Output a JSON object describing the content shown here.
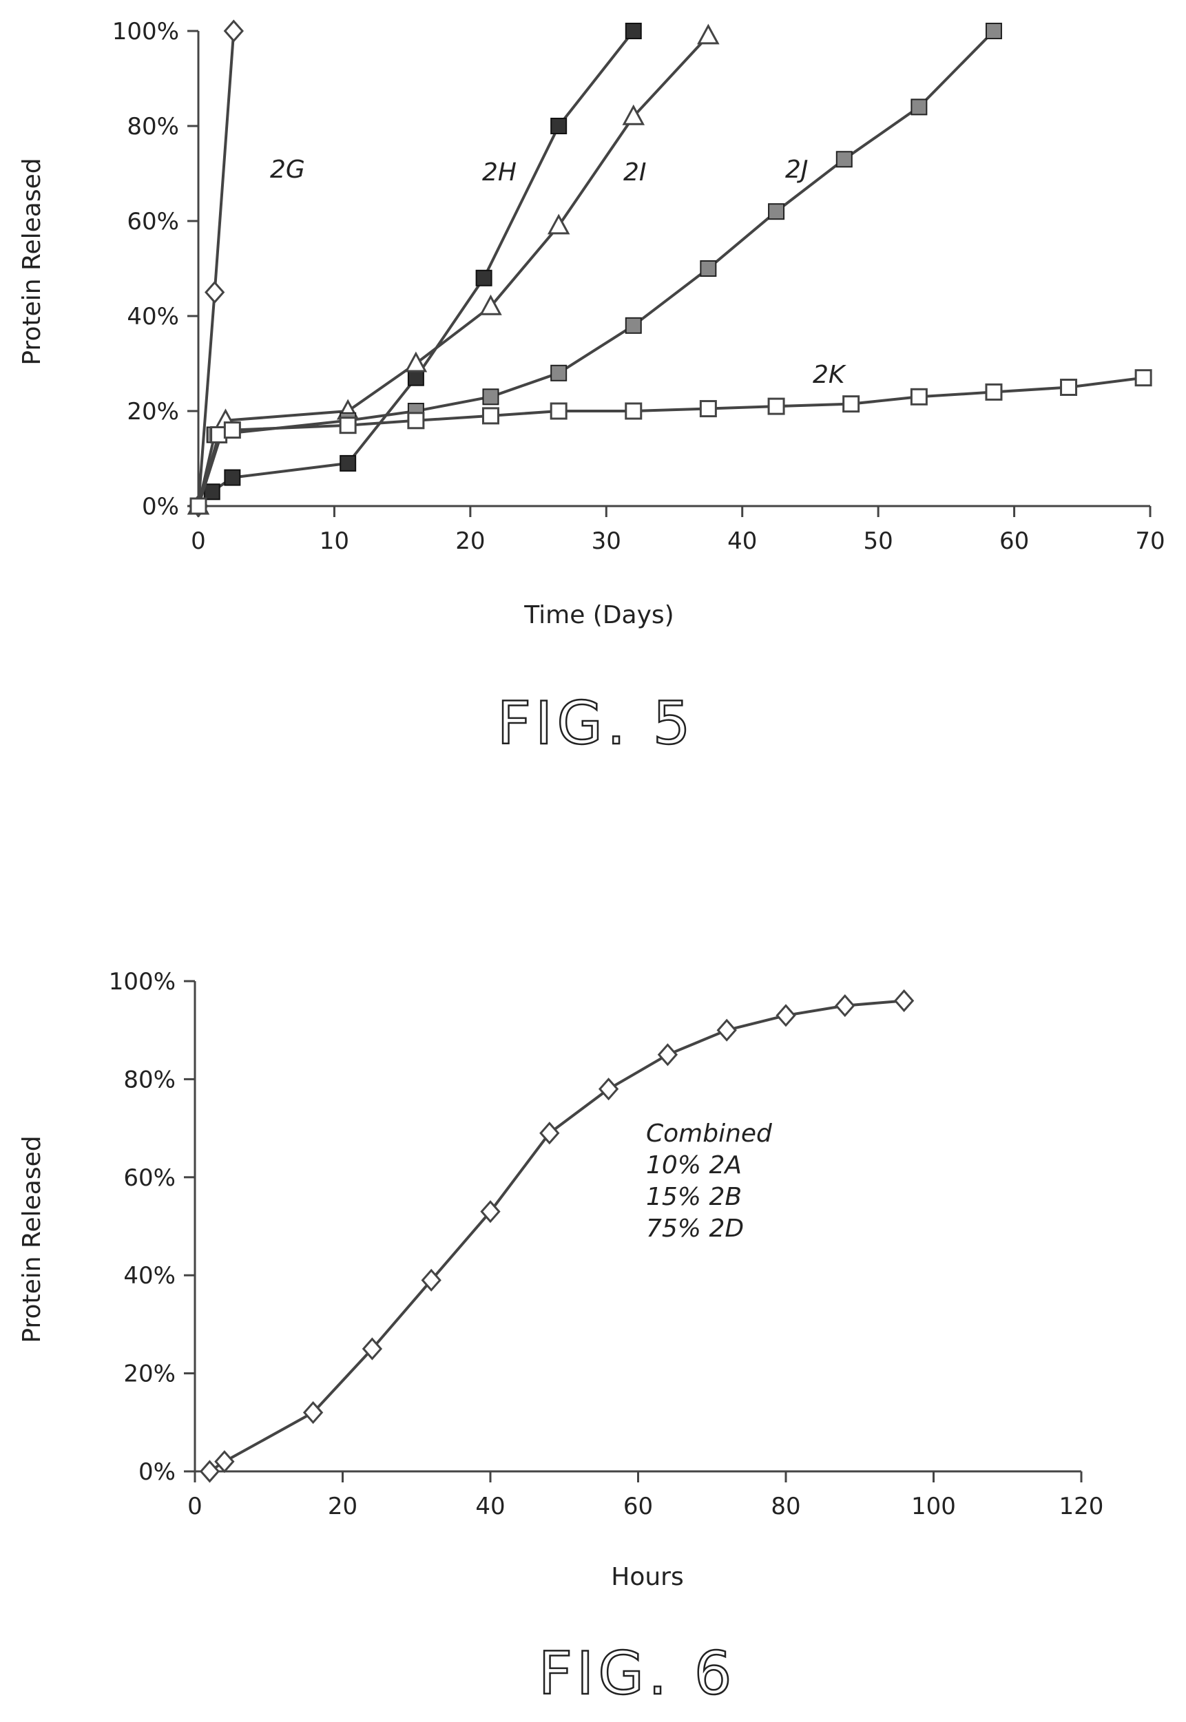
{
  "chart_data": [
    {
      "type": "line",
      "title": "",
      "xlabel": "Time (Days)",
      "ylabel": "Protein Released",
      "xlim": [
        0,
        70
      ],
      "ylim": [
        0,
        100
      ],
      "x_ticks": [
        "0",
        "10",
        "20",
        "30",
        "40",
        "50",
        "60",
        "70"
      ],
      "y_ticks": [
        "0%",
        "20%",
        "40%",
        "60%",
        "80%",
        "100%"
      ],
      "grid": false,
      "caption": "FIG. 5",
      "series": [
        {
          "name": "2G",
          "marker": "diamond",
          "x": [
            0,
            1.2,
            2.6
          ],
          "y": [
            0,
            45,
            100
          ]
        },
        {
          "name": "2H",
          "marker": "filled-square",
          "x": [
            0,
            1,
            2.5,
            11,
            16,
            21,
            26.5,
            32
          ],
          "y": [
            0,
            3,
            6,
            9,
            27,
            48,
            80,
            100
          ]
        },
        {
          "name": "2I",
          "marker": "triangle",
          "x": [
            0,
            2,
            11,
            16,
            21.5,
            26.5,
            32,
            37.5
          ],
          "y": [
            0,
            18,
            20,
            30,
            42,
            59,
            82,
            99
          ]
        },
        {
          "name": "2J",
          "marker": "hatched-square",
          "x": [
            0,
            1.2,
            11,
            16,
            21.5,
            26.5,
            32,
            37.5,
            42.5,
            47.5,
            53,
            58.5
          ],
          "y": [
            0,
            15,
            18,
            20,
            23,
            28,
            38,
            50,
            62,
            73,
            84,
            100
          ]
        },
        {
          "name": "2K",
          "marker": "open-square",
          "x": [
            0,
            1.5,
            2.5,
            11,
            16,
            21.5,
            26.5,
            32,
            37.5,
            42.5,
            48,
            53,
            58.5,
            64,
            69.5
          ],
          "y": [
            0,
            15,
            16,
            17,
            18,
            19,
            20,
            20,
            20.5,
            21,
            21.5,
            23,
            24,
            25,
            27
          ]
        }
      ],
      "annotations": [
        "2G",
        "2H",
        "2I",
        "2J",
        "2K"
      ]
    },
    {
      "type": "line",
      "title": "",
      "xlabel": "Hours",
      "ylabel": "Protein Released",
      "xlim": [
        0,
        120
      ],
      "ylim": [
        0,
        100
      ],
      "x_ticks": [
        "0",
        "20",
        "40",
        "60",
        "80",
        "100",
        "120"
      ],
      "y_ticks": [
        "0%",
        "20%",
        "40%",
        "60%",
        "80%",
        "100%"
      ],
      "grid": false,
      "caption": "FIG. 6",
      "series": [
        {
          "name": "Combined",
          "marker": "diamond",
          "x": [
            2,
            4,
            16,
            24,
            32,
            40,
            48,
            56,
            64,
            72,
            80,
            88,
            96
          ],
          "y": [
            0,
            2,
            12,
            25,
            39,
            53,
            69,
            78,
            85,
            90,
            93,
            95,
            96
          ]
        }
      ],
      "legend_lines": [
        "Combined",
        "10% 2A",
        "15% 2B",
        "75% 2D"
      ]
    }
  ],
  "colors": {
    "line": "#444444",
    "marker_fill_dark": "#333333",
    "marker_fill_mid": "#888888",
    "background": "#ffffff"
  }
}
